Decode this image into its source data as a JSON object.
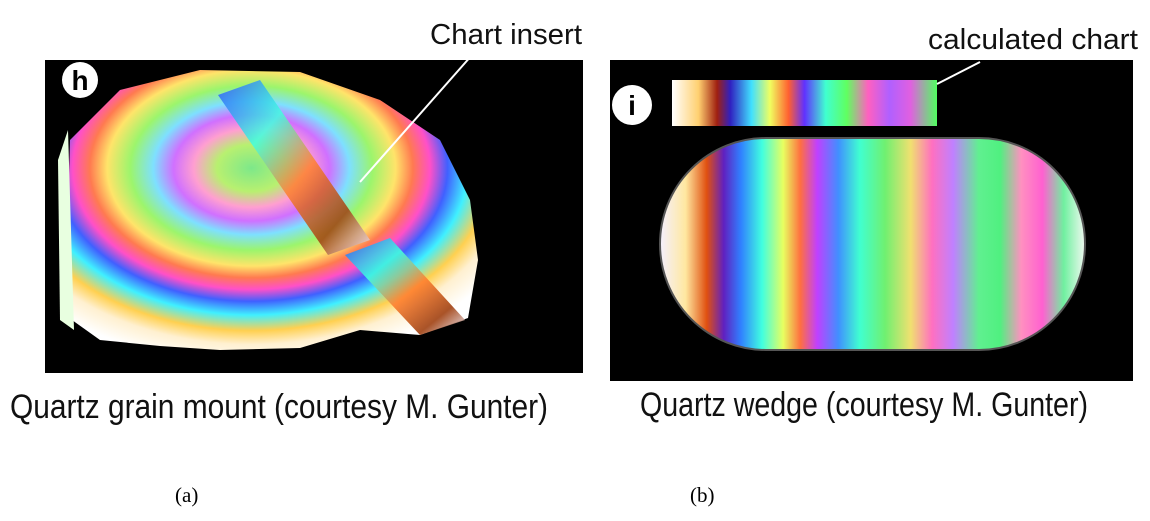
{
  "panels": [
    {
      "letter": "h",
      "annotation": "Chart insert",
      "caption": "Quartz grain mount (courtesy M. Gunter)",
      "sublabel": "(a)"
    },
    {
      "letter": "i",
      "annotation": "calculated chart",
      "caption": "Quartz wedge (courtesy M. Gunter)",
      "sublabel": "(b)"
    }
  ]
}
